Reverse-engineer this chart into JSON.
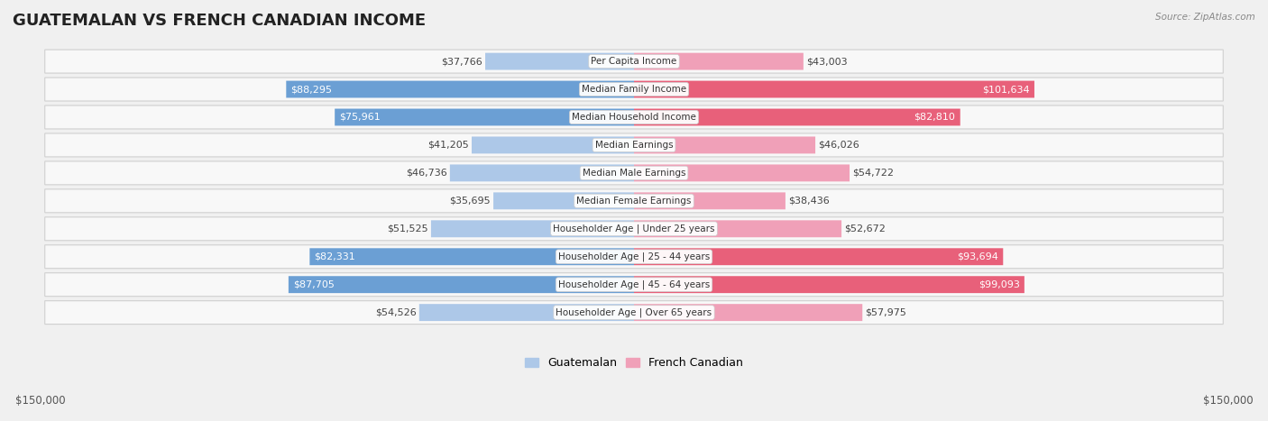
{
  "title": "GUATEMALAN VS FRENCH CANADIAN INCOME",
  "source": "Source: ZipAtlas.com",
  "categories": [
    "Per Capita Income",
    "Median Family Income",
    "Median Household Income",
    "Median Earnings",
    "Median Male Earnings",
    "Median Female Earnings",
    "Householder Age | Under 25 years",
    "Householder Age | 25 - 44 years",
    "Householder Age | 45 - 64 years",
    "Householder Age | Over 65 years"
  ],
  "guatemalan": [
    37766,
    88295,
    75961,
    41205,
    46736,
    35695,
    51525,
    82331,
    87705,
    54526
  ],
  "french_canadian": [
    43003,
    101634,
    82810,
    46026,
    54722,
    38436,
    52672,
    93694,
    99093,
    57975
  ],
  "guatemalan_labels": [
    "$37,766",
    "$88,295",
    "$75,961",
    "$41,205",
    "$46,736",
    "$35,695",
    "$51,525",
    "$82,331",
    "$87,705",
    "$54,526"
  ],
  "french_canadian_labels": [
    "$43,003",
    "$101,634",
    "$82,810",
    "$46,026",
    "$54,722",
    "$38,436",
    "$52,672",
    "$93,694",
    "$99,093",
    "$57,975"
  ],
  "guatemalan_label_white": [
    false,
    true,
    true,
    false,
    false,
    false,
    false,
    true,
    true,
    false
  ],
  "french_canadian_label_white": [
    false,
    true,
    true,
    false,
    false,
    false,
    false,
    true,
    true,
    false
  ],
  "max_val": 150000,
  "bar_color_guatemalan_dark": "#6b9fd4",
  "bar_color_guatemalan_light": "#adc8e8",
  "bar_color_french_dark": "#e8607a",
  "bar_color_french_light": "#f0a0b8",
  "background_color": "#f0f0f0",
  "row_bg_color": "#f8f8f8",
  "title_fontsize": 13,
  "label_fontsize": 8,
  "category_fontsize": 7.5,
  "axis_label": "$150,000",
  "legend_guatemalan": "Guatemalan",
  "legend_french": "French Canadian"
}
